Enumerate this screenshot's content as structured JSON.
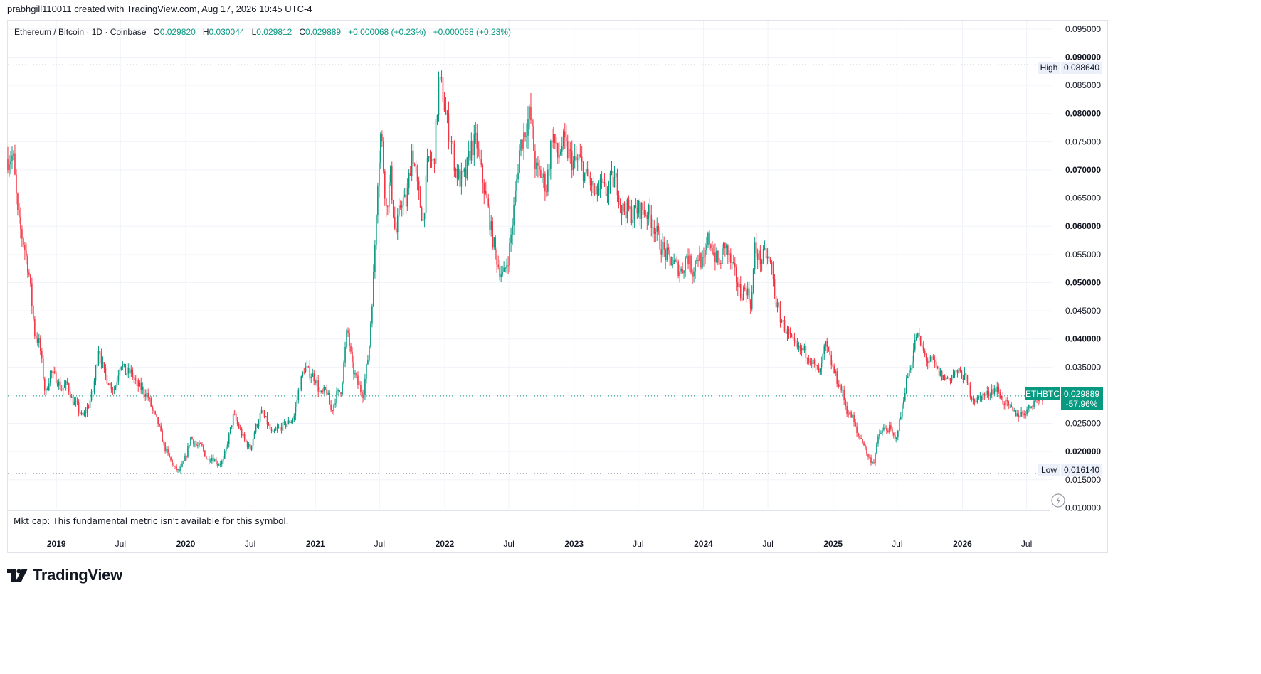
{
  "header": {
    "credit": "prabhgill110011 created with TradingView.com, Aug 17, 2026 10:45 UTC-4"
  },
  "legend": {
    "symbol": "Ethereum / Bitcoin · 1D · Coinbase",
    "open_label": "O",
    "open_value": "0.029820",
    "high_label": "H",
    "high_value": "0.030044",
    "low_label": "L",
    "low_value": "0.029812",
    "close_label": "C",
    "close_value": "0.029889",
    "change_1": "+0.000068 (+0.23%)",
    "change_2": "+0.000068 (+0.23%)"
  },
  "status_bar": {
    "text": "Mkt cap: This fundamental metric isn't available for this symbol."
  },
  "badges": {
    "high_label": "High",
    "high_value": "0.088640",
    "low_label": "Low",
    "low_value": "0.016140",
    "symbol_tag": "ETHBTC",
    "last_price": "0.029889",
    "pct_change": "-57.96%"
  },
  "footer": {
    "brand": "TradingView"
  },
  "colors": {
    "up": "#089981",
    "down": "#f23645",
    "grid": "#f0f3fa",
    "text": "#131722",
    "badge_bg": "#ebf0fa",
    "price_line": "#089981"
  },
  "chart_data": {
    "type": "candlestick",
    "title": "Ethereum / Bitcoin · 1D · Coinbase",
    "xlabel": "",
    "ylabel": "",
    "ylim": [
      0.0098,
      0.0965
    ],
    "y_ticks": [
      "0.010000",
      "0.015000",
      "0.020000",
      "0.025000",
      "0.030000",
      "0.035000",
      "0.040000",
      "0.045000",
      "0.050000",
      "0.055000",
      "0.060000",
      "0.065000",
      "0.070000",
      "0.075000",
      "0.080000",
      "0.085000",
      "0.090000",
      "0.095000"
    ],
    "y_ticks_bold": [
      "0.020000",
      "0.030000",
      "0.040000",
      "0.050000",
      "0.060000",
      "0.070000",
      "0.080000",
      "0.090000"
    ],
    "x_range": [
      "2018-08-17",
      "2026-08-17"
    ],
    "x_ticks": [
      {
        "date": "2019-01-01",
        "label": "2019",
        "bold": true
      },
      {
        "date": "2019-07-01",
        "label": "Jul",
        "bold": false
      },
      {
        "date": "2020-01-01",
        "label": "2020",
        "bold": true
      },
      {
        "date": "2020-07-01",
        "label": "Jul",
        "bold": false
      },
      {
        "date": "2021-01-01",
        "label": "2021",
        "bold": true
      },
      {
        "date": "2021-07-01",
        "label": "Jul",
        "bold": false
      },
      {
        "date": "2022-01-01",
        "label": "2022",
        "bold": true
      },
      {
        "date": "2022-07-01",
        "label": "Jul",
        "bold": false
      },
      {
        "date": "2023-01-01",
        "label": "2023",
        "bold": true
      },
      {
        "date": "2023-07-01",
        "label": "Jul",
        "bold": false
      },
      {
        "date": "2024-01-01",
        "label": "2024",
        "bold": true
      },
      {
        "date": "2024-07-01",
        "label": "Jul",
        "bold": false
      },
      {
        "date": "2025-01-01",
        "label": "2025",
        "bold": true
      },
      {
        "date": "2025-07-01",
        "label": "Jul",
        "bold": false
      },
      {
        "date": "2026-01-01",
        "label": "2026",
        "bold": true
      },
      {
        "date": "2026-07-01",
        "label": "Jul",
        "bold": false
      }
    ],
    "high": 0.08864,
    "low": 0.01614,
    "last": 0.029889,
    "series": [
      {
        "name": "ETHBTC",
        "points": [
          [
            "2018-08-17",
            0.072
          ],
          [
            "2018-09-01",
            0.0725
          ],
          [
            "2018-09-15",
            0.061
          ],
          [
            "2018-10-01",
            0.057
          ],
          [
            "2018-10-15",
            0.052
          ],
          [
            "2018-11-01",
            0.041
          ],
          [
            "2018-11-15",
            0.039
          ],
          [
            "2018-12-01",
            0.03
          ],
          [
            "2018-12-15",
            0.034
          ],
          [
            "2019-01-01",
            0.033
          ],
          [
            "2019-01-15",
            0.031
          ],
          [
            "2019-02-01",
            0.032
          ],
          [
            "2019-02-15",
            0.029
          ],
          [
            "2019-03-01",
            0.028
          ],
          [
            "2019-03-15",
            0.026
          ],
          [
            "2019-04-01",
            0.028
          ],
          [
            "2019-04-15",
            0.031
          ],
          [
            "2019-05-01",
            0.039
          ],
          [
            "2019-05-15",
            0.034
          ],
          [
            "2019-06-01",
            0.032
          ],
          [
            "2019-06-15",
            0.031
          ],
          [
            "2019-07-01",
            0.036
          ],
          [
            "2019-07-15",
            0.034
          ],
          [
            "2019-08-01",
            0.034
          ],
          [
            "2019-08-15",
            0.032
          ],
          [
            "2019-09-01",
            0.031
          ],
          [
            "2019-09-15",
            0.03
          ],
          [
            "2019-10-01",
            0.027
          ],
          [
            "2019-10-15",
            0.025
          ],
          [
            "2019-11-01",
            0.021
          ],
          [
            "2019-11-15",
            0.019
          ],
          [
            "2019-12-01",
            0.017
          ],
          [
            "2019-12-15",
            0.0165
          ],
          [
            "2020-01-01",
            0.019
          ],
          [
            "2020-01-15",
            0.0225
          ],
          [
            "2020-02-01",
            0.021
          ],
          [
            "2020-02-15",
            0.021
          ],
          [
            "2020-03-01",
            0.0185
          ],
          [
            "2020-03-15",
            0.019
          ],
          [
            "2020-04-01",
            0.0178
          ],
          [
            "2020-04-15",
            0.0182
          ],
          [
            "2020-05-01",
            0.0225
          ],
          [
            "2020-05-15",
            0.0265
          ],
          [
            "2020-06-01",
            0.024
          ],
          [
            "2020-06-15",
            0.022
          ],
          [
            "2020-07-01",
            0.0205
          ],
          [
            "2020-07-15",
            0.024
          ],
          [
            "2020-08-01",
            0.027
          ],
          [
            "2020-08-15",
            0.0255
          ],
          [
            "2020-09-01",
            0.023
          ],
          [
            "2020-09-15",
            0.024
          ],
          [
            "2020-10-01",
            0.0245
          ],
          [
            "2020-10-15",
            0.025
          ],
          [
            "2020-11-01",
            0.026
          ],
          [
            "2020-11-15",
            0.031
          ],
          [
            "2020-12-01",
            0.035
          ],
          [
            "2020-12-15",
            0.034
          ],
          [
            "2021-01-01",
            0.033
          ],
          [
            "2021-01-15",
            0.03
          ],
          [
            "2021-02-01",
            0.031
          ],
          [
            "2021-02-15",
            0.027
          ],
          [
            "2021-03-01",
            0.03
          ],
          [
            "2021-03-15",
            0.031
          ],
          [
            "2021-04-01",
            0.042
          ],
          [
            "2021-04-15",
            0.035
          ],
          [
            "2021-05-01",
            0.032
          ],
          [
            "2021-05-15",
            0.03
          ],
          [
            "2021-06-01",
            0.038
          ],
          [
            "2021-06-15",
            0.052
          ],
          [
            "2021-06-25",
            0.068
          ],
          [
            "2021-07-05",
            0.077
          ],
          [
            "2021-07-20",
            0.063
          ],
          [
            "2021-08-01",
            0.069
          ],
          [
            "2021-08-15",
            0.058
          ],
          [
            "2021-09-01",
            0.065
          ],
          [
            "2021-09-15",
            0.064
          ],
          [
            "2021-10-01",
            0.074
          ],
          [
            "2021-10-15",
            0.067
          ],
          [
            "2021-11-01",
            0.061
          ],
          [
            "2021-11-15",
            0.072
          ],
          [
            "2021-12-01",
            0.071
          ],
          [
            "2021-12-15",
            0.085
          ],
          [
            "2021-12-25",
            0.0845
          ],
          [
            "2022-01-05",
            0.079
          ],
          [
            "2022-01-20",
            0.075
          ],
          [
            "2022-02-01",
            0.07
          ],
          [
            "2022-02-15",
            0.068
          ],
          [
            "2022-03-01",
            0.069
          ],
          [
            "2022-03-15",
            0.074
          ],
          [
            "2022-04-01",
            0.075
          ],
          [
            "2022-04-15",
            0.069
          ],
          [
            "2022-05-01",
            0.064
          ],
          [
            "2022-05-15",
            0.058
          ],
          [
            "2022-06-01",
            0.053
          ],
          [
            "2022-06-15",
            0.051
          ],
          [
            "2022-07-01",
            0.055
          ],
          [
            "2022-07-15",
            0.063
          ],
          [
            "2022-08-01",
            0.074
          ],
          [
            "2022-08-15",
            0.077
          ],
          [
            "2022-08-30",
            0.08
          ],
          [
            "2022-09-15",
            0.07
          ],
          [
            "2022-10-01",
            0.069
          ],
          [
            "2022-10-15",
            0.067
          ],
          [
            "2022-11-01",
            0.077
          ],
          [
            "2022-11-15",
            0.072
          ],
          [
            "2022-12-01",
            0.075
          ],
          [
            "2022-12-15",
            0.073
          ],
          [
            "2023-01-01",
            0.071
          ],
          [
            "2023-01-15",
            0.072
          ],
          [
            "2023-02-01",
            0.069
          ],
          [
            "2023-02-15",
            0.068
          ],
          [
            "2023-03-01",
            0.065
          ],
          [
            "2023-03-15",
            0.067
          ],
          [
            "2023-04-01",
            0.066
          ],
          [
            "2023-04-15",
            0.068
          ],
          [
            "2023-05-01",
            0.068
          ],
          [
            "2023-05-15",
            0.063
          ],
          [
            "2023-06-01",
            0.063
          ],
          [
            "2023-06-15",
            0.062
          ],
          [
            "2023-07-01",
            0.063
          ],
          [
            "2023-07-15",
            0.063
          ],
          [
            "2023-08-01",
            0.062
          ],
          [
            "2023-08-15",
            0.06
          ],
          [
            "2023-09-01",
            0.057
          ],
          [
            "2023-09-15",
            0.055
          ],
          [
            "2023-10-01",
            0.054
          ],
          [
            "2023-10-15",
            0.053
          ],
          [
            "2023-11-01",
            0.052
          ],
          [
            "2023-11-15",
            0.055
          ],
          [
            "2023-12-01",
            0.052
          ],
          [
            "2023-12-15",
            0.055
          ],
          [
            "2024-01-01",
            0.053
          ],
          [
            "2024-01-15",
            0.058
          ],
          [
            "2024-02-01",
            0.055
          ],
          [
            "2024-02-15",
            0.053
          ],
          [
            "2024-03-01",
            0.057
          ],
          [
            "2024-03-15",
            0.054
          ],
          [
            "2024-04-01",
            0.051
          ],
          [
            "2024-04-15",
            0.048
          ],
          [
            "2024-05-01",
            0.049
          ],
          [
            "2024-05-15",
            0.046
          ],
          [
            "2024-05-25",
            0.056
          ],
          [
            "2024-06-10",
            0.054
          ],
          [
            "2024-06-25",
            0.055
          ],
          [
            "2024-07-10",
            0.053
          ],
          [
            "2024-07-25",
            0.046
          ],
          [
            "2024-08-10",
            0.043
          ],
          [
            "2024-08-25",
            0.041
          ],
          [
            "2024-09-10",
            0.039
          ],
          [
            "2024-09-25",
            0.038
          ],
          [
            "2024-10-10",
            0.038
          ],
          [
            "2024-10-25",
            0.037
          ],
          [
            "2024-11-10",
            0.035
          ],
          [
            "2024-11-25",
            0.034
          ],
          [
            "2024-12-10",
            0.039
          ],
          [
            "2024-12-25",
            0.036
          ],
          [
            "2025-01-10",
            0.033
          ],
          [
            "2025-01-25",
            0.031
          ],
          [
            "2025-02-10",
            0.027
          ],
          [
            "2025-02-25",
            0.026
          ],
          [
            "2025-03-10",
            0.023
          ],
          [
            "2025-03-25",
            0.022
          ],
          [
            "2025-04-10",
            0.019
          ],
          [
            "2025-04-25",
            0.018
          ],
          [
            "2025-05-10",
            0.023
          ],
          [
            "2025-05-25",
            0.024
          ],
          [
            "2025-06-10",
            0.024
          ],
          [
            "2025-06-25",
            0.022
          ],
          [
            "2025-07-10",
            0.026
          ],
          [
            "2025-07-25",
            0.032
          ],
          [
            "2025-08-10",
            0.036
          ],
          [
            "2025-08-25",
            0.041
          ],
          [
            "2025-09-10",
            0.038
          ],
          [
            "2025-09-25",
            0.036
          ],
          [
            "2025-10-10",
            0.036
          ],
          [
            "2025-10-25",
            0.034
          ],
          [
            "2025-11-10",
            0.033
          ],
          [
            "2025-11-25",
            0.033
          ],
          [
            "2025-12-10",
            0.034
          ],
          [
            "2025-12-25",
            0.034
          ],
          [
            "2026-01-10",
            0.033
          ],
          [
            "2026-01-25",
            0.03
          ],
          [
            "2026-02-10",
            0.029
          ],
          [
            "2026-02-25",
            0.03
          ],
          [
            "2026-03-10",
            0.03
          ],
          [
            "2026-03-25",
            0.031
          ],
          [
            "2026-04-10",
            0.031
          ],
          [
            "2026-04-25",
            0.029
          ],
          [
            "2026-05-10",
            0.028
          ],
          [
            "2026-05-25",
            0.027
          ],
          [
            "2026-06-10",
            0.0265
          ],
          [
            "2026-06-25",
            0.027
          ],
          [
            "2026-07-10",
            0.028
          ],
          [
            "2026-07-25",
            0.0292
          ],
          [
            "2026-08-10",
            0.0296
          ],
          [
            "2026-08-17",
            0.029889
          ]
        ]
      }
    ]
  }
}
